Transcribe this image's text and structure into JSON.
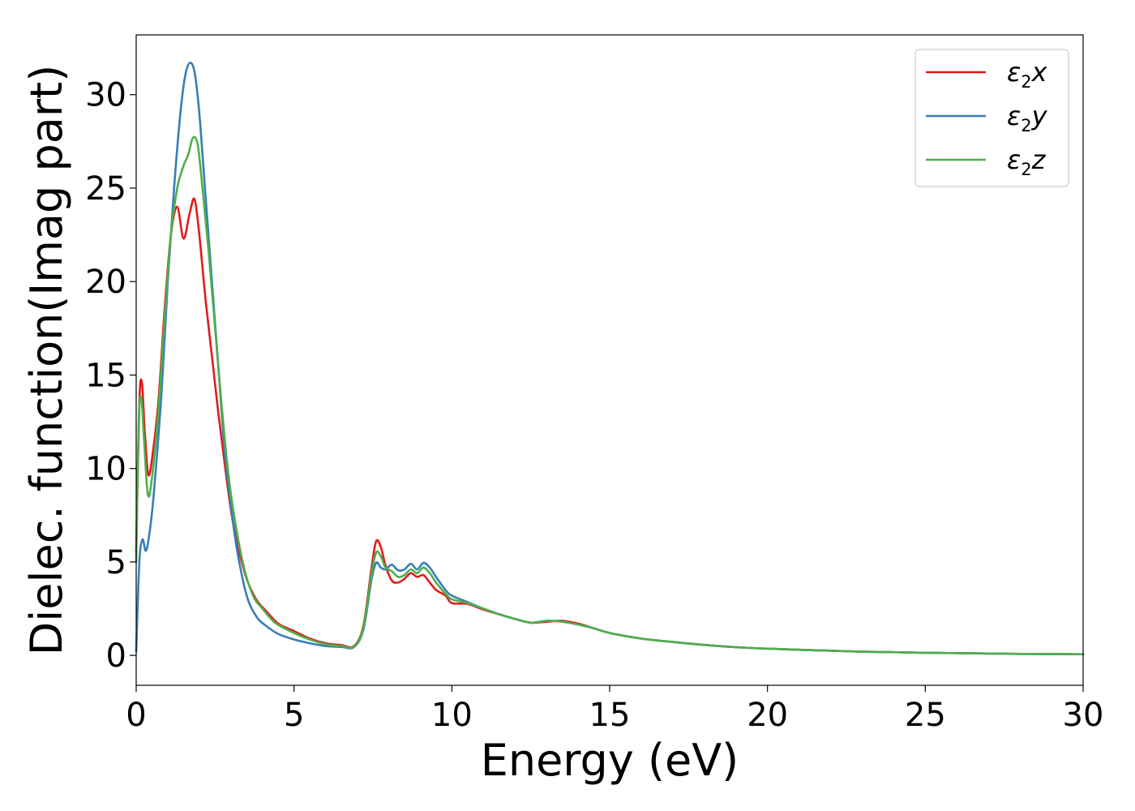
{
  "chart_data": {
    "type": "line",
    "xlabel": "Energy (eV)",
    "ylabel": "Dielec. function(Imag part)",
    "xlim": [
      0,
      30
    ],
    "ylim": [
      -1.6,
      33.2
    ],
    "xticks": [
      0,
      5,
      10,
      15,
      20,
      25,
      30
    ],
    "yticks": [
      0,
      5,
      10,
      15,
      20,
      25,
      30
    ],
    "grid": false,
    "legend_position": "top-right",
    "series": [
      {
        "name": "ε2x",
        "name_base": "ε",
        "name_sub": "2",
        "name_tail": "x",
        "color": "#e41a1c",
        "x": [
          0,
          0.1,
          0.18,
          0.27,
          0.38,
          0.5,
          0.7,
          0.9,
          1.1,
          1.3,
          1.5,
          1.7,
          1.85,
          2.0,
          2.2,
          2.4,
          2.6,
          2.8,
          3.0,
          3.2,
          3.5,
          3.8,
          4.1,
          4.5,
          5.0,
          5.5,
          6.0,
          6.5,
          6.9,
          7.2,
          7.45,
          7.6,
          7.75,
          7.9,
          8.1,
          8.3,
          8.5,
          8.7,
          8.9,
          9.1,
          9.3,
          9.5,
          9.8,
          10.0,
          10.5,
          11.0,
          11.5,
          12.0,
          12.5,
          13.0,
          13.5,
          14.0,
          14.5,
          15.0,
          16.0,
          17.0,
          18.0,
          19.0,
          20.0,
          21.0,
          22.0,
          23.0,
          24.0,
          25.0,
          26.0,
          27.0,
          28.0,
          29.0,
          30.0
        ],
        "y": [
          5.5,
          13.5,
          14.6,
          12.0,
          9.7,
          10.5,
          13.5,
          18.5,
          22.5,
          24.0,
          22.3,
          23.7,
          24.4,
          22.5,
          19.0,
          16.0,
          13.0,
          10.3,
          7.8,
          6.0,
          4.1,
          3.0,
          2.4,
          1.7,
          1.3,
          0.9,
          0.65,
          0.55,
          0.5,
          1.6,
          4.6,
          6.1,
          5.8,
          4.8,
          4.0,
          3.9,
          4.1,
          4.4,
          4.2,
          4.3,
          3.9,
          3.5,
          3.2,
          2.8,
          2.75,
          2.45,
          2.2,
          1.95,
          1.75,
          1.8,
          1.85,
          1.7,
          1.45,
          1.2,
          0.9,
          0.72,
          0.56,
          0.44,
          0.36,
          0.3,
          0.25,
          0.2,
          0.17,
          0.14,
          0.12,
          0.1,
          0.08,
          0.07,
          0.06
        ]
      },
      {
        "name": "ε2y",
        "name_base": "ε",
        "name_sub": "2",
        "name_tail": "y",
        "color": "#377eb8",
        "x": [
          0,
          0.1,
          0.2,
          0.3,
          0.4,
          0.55,
          0.8,
          1.0,
          1.2,
          1.4,
          1.55,
          1.7,
          1.85,
          2.0,
          2.2,
          2.4,
          2.6,
          2.8,
          3.0,
          3.2,
          3.5,
          3.8,
          4.1,
          4.5,
          5.0,
          5.5,
          6.0,
          6.5,
          6.9,
          7.2,
          7.45,
          7.6,
          7.75,
          7.9,
          8.1,
          8.3,
          8.5,
          8.7,
          8.9,
          9.1,
          9.3,
          9.5,
          9.8,
          10.0,
          10.5,
          11.0,
          11.5,
          12.0,
          12.5,
          13.0,
          13.5,
          14.0,
          14.5,
          15.0,
          16.0,
          17.0,
          18.0,
          19.0,
          20.0,
          21.0,
          22.0,
          23.0,
          24.0,
          25.0,
          26.0,
          27.0,
          28.0,
          29.0,
          30.0
        ],
        "y": [
          0.2,
          5.0,
          6.2,
          5.6,
          6.3,
          8.5,
          14.0,
          20.0,
          25.0,
          29.0,
          31.0,
          31.7,
          31.2,
          29.0,
          24.5,
          20.0,
          15.5,
          11.0,
          8.0,
          5.6,
          3.2,
          2.1,
          1.6,
          1.15,
          0.85,
          0.65,
          0.5,
          0.45,
          0.45,
          1.4,
          4.0,
          4.95,
          4.7,
          4.6,
          4.85,
          4.55,
          4.6,
          4.9,
          4.6,
          4.95,
          4.7,
          4.2,
          3.5,
          3.2,
          2.85,
          2.5,
          2.2,
          1.95,
          1.75,
          1.85,
          1.8,
          1.65,
          1.45,
          1.2,
          0.9,
          0.72,
          0.56,
          0.44,
          0.36,
          0.3,
          0.25,
          0.2,
          0.17,
          0.14,
          0.12,
          0.1,
          0.08,
          0.07,
          0.06
        ]
      },
      {
        "name": "ε2z",
        "name_base": "ε",
        "name_sub": "2",
        "name_tail": "z",
        "color": "#4daf4a",
        "x": [
          0,
          0.08,
          0.16,
          0.25,
          0.37,
          0.5,
          0.7,
          0.9,
          1.1,
          1.3,
          1.5,
          1.65,
          1.8,
          1.95,
          2.1,
          2.3,
          2.5,
          2.7,
          2.9,
          3.1,
          3.4,
          3.7,
          4.0,
          4.4,
          5.0,
          5.5,
          6.0,
          6.5,
          6.9,
          7.2,
          7.45,
          7.6,
          7.75,
          7.9,
          8.1,
          8.3,
          8.5,
          8.7,
          8.9,
          9.1,
          9.3,
          9.5,
          9.8,
          10.0,
          10.5,
          11.0,
          11.5,
          12.0,
          12.5,
          13.0,
          13.5,
          14.0,
          14.5,
          15.0,
          16.0,
          17.0,
          18.0,
          19.0,
          20.0,
          21.0,
          22.0,
          23.0,
          24.0,
          25.0,
          26.0,
          27.0,
          28.0,
          29.0,
          30.0
        ],
        "y": [
          5.0,
          12.5,
          13.8,
          11.5,
          8.6,
          9.5,
          13.0,
          18.0,
          22.5,
          25.0,
          26.2,
          26.8,
          27.7,
          27.3,
          25.0,
          21.5,
          17.5,
          13.5,
          10.0,
          7.5,
          4.8,
          3.2,
          2.5,
          1.75,
          1.2,
          0.85,
          0.6,
          0.5,
          0.48,
          1.5,
          4.3,
          5.5,
          5.3,
          4.7,
          4.5,
          4.2,
          4.3,
          4.6,
          4.4,
          4.7,
          4.4,
          3.9,
          3.3,
          3.0,
          2.8,
          2.5,
          2.2,
          1.95,
          1.75,
          1.85,
          1.8,
          1.65,
          1.45,
          1.2,
          0.9,
          0.72,
          0.56,
          0.44,
          0.36,
          0.3,
          0.25,
          0.2,
          0.17,
          0.14,
          0.12,
          0.1,
          0.08,
          0.07,
          0.06
        ]
      }
    ]
  }
}
